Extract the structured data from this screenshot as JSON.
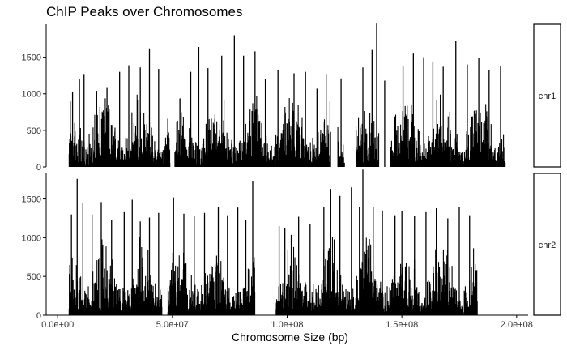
{
  "chart_data": {
    "type": "bar",
    "title": "ChIP Peaks over Chromosomes",
    "xlabel": "Chromosome Size (bp)",
    "ylabel": "",
    "x_ticks": [
      {
        "value": 0,
        "label": "0.0e+00"
      },
      {
        "value": 50000000,
        "label": "5.0e+07"
      },
      {
        "value": 100000000,
        "label": "1.0e+08"
      },
      {
        "value": 150000000,
        "label": "1.5e+08"
      },
      {
        "value": 200000000,
        "label": "2.0e+08"
      }
    ],
    "xlim": [
      -5000000,
      205000000
    ],
    "y_ticks": [
      0,
      500,
      1000,
      1500
    ],
    "grid": false,
    "colors": {
      "bars": "#000000",
      "axes": "#000000",
      "strip_border": "#000000"
    },
    "panels": [
      {
        "name": "chr1",
        "ylim": [
          0,
          1950
        ],
        "region": [
          5000000,
          195000000
        ],
        "gaps": [
          [
            49000000,
            51000000
          ],
          [
            119000000,
            122000000
          ],
          [
            125000000,
            130000000
          ],
          [
            140000000,
            145000000
          ]
        ],
        "spikes": [
          {
            "x": 6500000,
            "y": 1030
          },
          {
            "x": 9500000,
            "y": 1200
          },
          {
            "x": 11500000,
            "y": 1270
          },
          {
            "x": 17000000,
            "y": 1040
          },
          {
            "x": 21500000,
            "y": 1080
          },
          {
            "x": 27000000,
            "y": 1300
          },
          {
            "x": 31000000,
            "y": 1390
          },
          {
            "x": 36000000,
            "y": 1360
          },
          {
            "x": 40000000,
            "y": 1620
          },
          {
            "x": 44000000,
            "y": 1340
          },
          {
            "x": 48000000,
            "y": 660
          },
          {
            "x": 58000000,
            "y": 1300
          },
          {
            "x": 61500000,
            "y": 1640
          },
          {
            "x": 65500000,
            "y": 1350
          },
          {
            "x": 71500000,
            "y": 1520
          },
          {
            "x": 77000000,
            "y": 1800
          },
          {
            "x": 81000000,
            "y": 1520
          },
          {
            "x": 86000000,
            "y": 1580
          },
          {
            "x": 90500000,
            "y": 1200
          },
          {
            "x": 96000000,
            "y": 1330
          },
          {
            "x": 103000000,
            "y": 1280
          },
          {
            "x": 108000000,
            "y": 1300
          },
          {
            "x": 113000000,
            "y": 1070
          },
          {
            "x": 117000000,
            "y": 1270
          },
          {
            "x": 123500000,
            "y": 1210
          },
          {
            "x": 133000000,
            "y": 1360
          },
          {
            "x": 137000000,
            "y": 1600
          },
          {
            "x": 139000000,
            "y": 1960
          },
          {
            "x": 142500000,
            "y": 1180
          },
          {
            "x": 150500000,
            "y": 1380
          },
          {
            "x": 155000000,
            "y": 1550
          },
          {
            "x": 159500000,
            "y": 1500
          },
          {
            "x": 163500000,
            "y": 1430
          },
          {
            "x": 168000000,
            "y": 1370
          },
          {
            "x": 173500000,
            "y": 1720
          },
          {
            "x": 178500000,
            "y": 1400
          },
          {
            "x": 183500000,
            "y": 1490
          },
          {
            "x": 188000000,
            "y": 1330
          },
          {
            "x": 193000000,
            "y": 1380
          }
        ]
      },
      {
        "name": "chr2",
        "ylim": [
          0,
          1830
        ],
        "region": [
          5000000,
          183000000
        ],
        "gaps": [
          [
            45500000,
            48000000
          ],
          [
            86000000,
            95000000
          ]
        ],
        "spikes": [
          {
            "x": 6000000,
            "y": 1300
          },
          {
            "x": 8500000,
            "y": 1760
          },
          {
            "x": 11000000,
            "y": 1450
          },
          {
            "x": 15000000,
            "y": 1300
          },
          {
            "x": 19000000,
            "y": 1460
          },
          {
            "x": 23500000,
            "y": 1230
          },
          {
            "x": 29000000,
            "y": 1330
          },
          {
            "x": 32500000,
            "y": 1490
          },
          {
            "x": 36000000,
            "y": 1210
          },
          {
            "x": 40000000,
            "y": 1260
          },
          {
            "x": 44000000,
            "y": 1320
          },
          {
            "x": 50500000,
            "y": 1520
          },
          {
            "x": 55000000,
            "y": 1310
          },
          {
            "x": 59500000,
            "y": 1280
          },
          {
            "x": 64000000,
            "y": 1320
          },
          {
            "x": 70000000,
            "y": 1400
          },
          {
            "x": 74000000,
            "y": 1290
          },
          {
            "x": 78500000,
            "y": 1390
          },
          {
            "x": 82000000,
            "y": 1230
          },
          {
            "x": 85000000,
            "y": 1730
          },
          {
            "x": 96500000,
            "y": 1150
          },
          {
            "x": 99000000,
            "y": 1130
          },
          {
            "x": 105000000,
            "y": 1270
          },
          {
            "x": 110000000,
            "y": 1180
          },
          {
            "x": 116000000,
            "y": 1400
          },
          {
            "x": 119000000,
            "y": 1630
          },
          {
            "x": 123000000,
            "y": 1540
          },
          {
            "x": 128000000,
            "y": 1650
          },
          {
            "x": 131500000,
            "y": 1400
          },
          {
            "x": 133000000,
            "y": 1880
          },
          {
            "x": 137500000,
            "y": 1400
          },
          {
            "x": 141500000,
            "y": 1350
          },
          {
            "x": 147000000,
            "y": 1290
          },
          {
            "x": 150000000,
            "y": 1340
          },
          {
            "x": 155500000,
            "y": 1280
          },
          {
            "x": 160500000,
            "y": 1330
          },
          {
            "x": 165000000,
            "y": 1380
          },
          {
            "x": 170000000,
            "y": 1250
          },
          {
            "x": 175000000,
            "y": 1400
          },
          {
            "x": 179500000,
            "y": 1290
          }
        ]
      }
    ]
  }
}
